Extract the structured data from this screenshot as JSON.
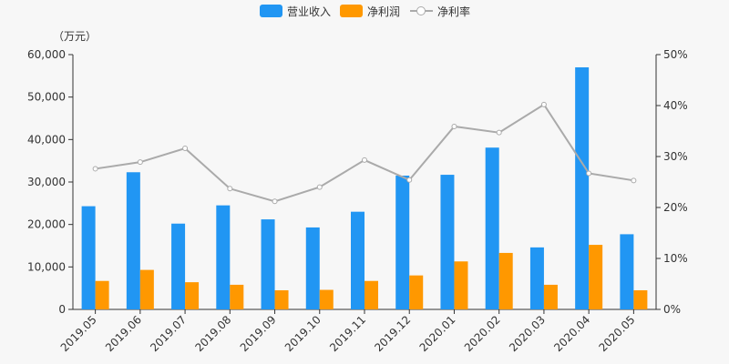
{
  "legend": {
    "revenue": "营业收入",
    "profit": "净利润",
    "margin": "净利率"
  },
  "unit_label": "（万元）",
  "colors": {
    "revenue": "#2196f3",
    "profit": "#ff9800",
    "margin": "#aaaaaa",
    "axis": "#333333"
  },
  "chart_data": {
    "type": "bar",
    "categories": [
      "2019.05",
      "2019.06",
      "2019.07",
      "2019.08",
      "2019.09",
      "2019.10",
      "2019.11",
      "2019.12",
      "2020.01",
      "2020.02",
      "2020.03",
      "2020.04",
      "2020.05"
    ],
    "series": [
      {
        "name": "营业收入",
        "type": "bar",
        "axis": "left",
        "values": [
          24300,
          32300,
          20200,
          24500,
          21200,
          19300,
          23000,
          31500,
          31700,
          38100,
          14600,
          57000,
          17700
        ]
      },
      {
        "name": "净利润",
        "type": "bar",
        "axis": "left",
        "values": [
          6700,
          9300,
          6400,
          5800,
          4500,
          4600,
          6700,
          8000,
          11300,
          13300,
          5800,
          15200,
          4500
        ]
      },
      {
        "name": "净利率",
        "type": "line",
        "axis": "right",
        "values": [
          27.6,
          28.9,
          31.6,
          23.7,
          21.2,
          24.0,
          29.3,
          25.4,
          35.9,
          34.7,
          40.2,
          26.7,
          25.3
        ]
      }
    ],
    "y_left": {
      "min": 0,
      "max": 60000,
      "ticks": [
        "0",
        "10,000",
        "20,000",
        "30,000",
        "40,000",
        "50,000",
        "60,000"
      ]
    },
    "y_right": {
      "min": 0,
      "max": 50,
      "ticks": [
        "0%",
        "10%",
        "20%",
        "30%",
        "40%",
        "50%"
      ]
    },
    "legend_position": "top-center",
    "grid": false
  }
}
